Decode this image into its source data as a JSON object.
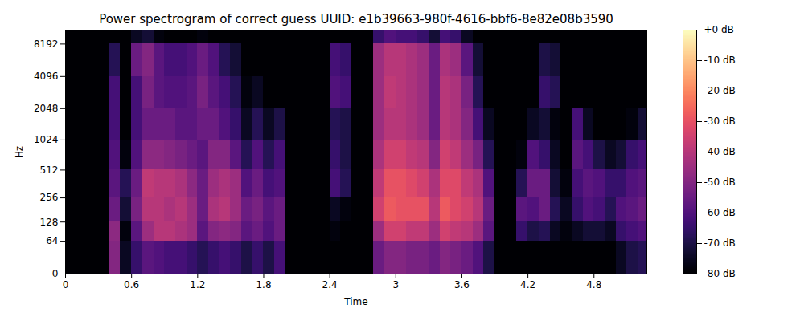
{
  "chart_data": {
    "type": "heatmap",
    "title": "Power spectrogram of correct guess UUID: e1b39663-980f-4616-bbf6-8e82e08b3590",
    "x_label": "Time",
    "y_label": "Hz",
    "log": "y",
    "xlim": [
      0,
      5.28
    ],
    "xticks": [
      0,
      0.6,
      1.2,
      1.8,
      2.4,
      3,
      3.6,
      4.2,
      4.8
    ],
    "ylim": [
      0,
      11025
    ],
    "yticks": [
      0,
      64,
      128,
      256,
      512,
      1024,
      2048,
      4096,
      8192
    ],
    "time_edges": [
      0,
      0.1,
      0.2,
      0.3,
      0.4,
      0.5,
      0.6,
      0.7,
      0.8,
      0.9,
      1,
      1.1,
      1.2,
      1.3,
      1.4,
      1.5,
      1.6,
      1.7,
      1.8,
      1.9,
      2,
      2.1,
      2.2,
      2.3,
      2.4,
      2.5,
      2.6,
      2.7,
      2.8,
      2.9,
      3,
      3.1,
      3.2,
      3.3,
      3.4,
      3.5,
      3.6,
      3.7,
      3.8,
      3.9,
      4,
      4.1,
      4.2,
      4.3,
      4.4,
      4.5,
      4.6,
      4.7,
      4.8,
      4.9,
      5,
      5.1,
      5.2,
      5.28
    ],
    "freq_edges": [
      0,
      64,
      128,
      256,
      512,
      1024,
      2048,
      4096,
      8192,
      11025
    ],
    "db_by_time": [
      [
        -80,
        -80,
        -80,
        -80,
        -80,
        -80,
        -80,
        -80,
        -80
      ],
      [
        -80,
        -80,
        -80,
        -80,
        -80,
        -80,
        -80,
        -80,
        -80
      ],
      [
        -80,
        -80,
        -80,
        -80,
        -80,
        -80,
        -80,
        -80,
        -80
      ],
      [
        -80,
        -80,
        -80,
        -80,
        -80,
        -80,
        -80,
        -80,
        -80
      ],
      [
        -50,
        -48,
        -55,
        -58,
        -60,
        -62,
        -62,
        -68,
        -80
      ],
      [
        -75,
        -78,
        -72,
        -68,
        -78,
        -80,
        -80,
        -80,
        -80
      ],
      [
        -65,
        -58,
        -52,
        -55,
        -60,
        -62,
        -62,
        -55,
        -75
      ],
      [
        -58,
        -45,
        -40,
        -38,
        -48,
        -55,
        -52,
        -50,
        -72
      ],
      [
        -60,
        -40,
        -40,
        -40,
        -48,
        -55,
        -58,
        -58,
        -78
      ],
      [
        -62,
        -40,
        -42,
        -40,
        -50,
        -55,
        -60,
        -62,
        -80
      ],
      [
        -62,
        -42,
        -40,
        -42,
        -52,
        -58,
        -60,
        -62,
        -80
      ],
      [
        -65,
        -45,
        -45,
        -48,
        -55,
        -58,
        -58,
        -60,
        -80
      ],
      [
        -68,
        -58,
        -55,
        -55,
        -58,
        -55,
        -52,
        -55,
        -78
      ],
      [
        -65,
        -50,
        -42,
        -45,
        -50,
        -55,
        -58,
        -60,
        -80
      ],
      [
        -62,
        -48,
        -40,
        -42,
        -50,
        -60,
        -62,
        -68,
        -80
      ],
      [
        -65,
        -50,
        -45,
        -45,
        -58,
        -65,
        -68,
        -72,
        -80
      ],
      [
        -70,
        -58,
        -55,
        -60,
        -68,
        -75,
        -78,
        -80,
        -80
      ],
      [
        -65,
        -55,
        -52,
        -55,
        -60,
        -68,
        -75,
        -80,
        -80
      ],
      [
        -70,
        -60,
        -58,
        -62,
        -68,
        -75,
        -80,
        -80,
        -80
      ],
      [
        -62,
        -55,
        -55,
        -60,
        -62,
        -70,
        -80,
        -80,
        -80
      ],
      [
        -80,
        -80,
        -80,
        -80,
        -80,
        -80,
        -80,
        -80,
        -80
      ],
      [
        -80,
        -80,
        -80,
        -80,
        -80,
        -80,
        -80,
        -80,
        -80
      ],
      [
        -80,
        -80,
        -80,
        -80,
        -80,
        -80,
        -80,
        -80,
        -80
      ],
      [
        -80,
        -80,
        -80,
        -80,
        -80,
        -80,
        -80,
        -80,
        -80
      ],
      [
        -80,
        -78,
        -75,
        -62,
        -65,
        -68,
        -60,
        -62,
        -80
      ],
      [
        -80,
        -80,
        -78,
        -68,
        -70,
        -70,
        -62,
        -65,
        -80
      ],
      [
        -80,
        -80,
        -80,
        -80,
        -80,
        -80,
        -80,
        -80,
        -80
      ],
      [
        -80,
        -80,
        -80,
        -80,
        -80,
        -80,
        -80,
        -80,
        -80
      ],
      [
        -55,
        -45,
        -35,
        -38,
        -42,
        -45,
        -45,
        -45,
        -65
      ],
      [
        -50,
        -35,
        -28,
        -30,
        -35,
        -40,
        -38,
        -40,
        -60
      ],
      [
        -50,
        -35,
        -30,
        -30,
        -35,
        -40,
        -40,
        -40,
        -62
      ],
      [
        -52,
        -38,
        -30,
        -32,
        -38,
        -42,
        -42,
        -42,
        -62
      ],
      [
        -52,
        -38,
        -30,
        -35,
        -40,
        -45,
        -45,
        -45,
        -65
      ],
      [
        -55,
        -45,
        -40,
        -42,
        -50,
        -55,
        -55,
        -55,
        -72
      ],
      [
        -50,
        -35,
        -28,
        -32,
        -35,
        -40,
        -40,
        -42,
        -62
      ],
      [
        -52,
        -38,
        -32,
        -32,
        -38,
        -42,
        -42,
        -45,
        -65
      ],
      [
        -55,
        -40,
        -35,
        -38,
        -45,
        -50,
        -52,
        -58,
        -75
      ],
      [
        -60,
        -45,
        -40,
        -42,
        -52,
        -62,
        -68,
        -72,
        -80
      ],
      [
        -70,
        -58,
        -55,
        -60,
        -68,
        -75,
        -80,
        -80,
        -80
      ],
      [
        -80,
        -80,
        -80,
        -80,
        -80,
        -80,
        -80,
        -80,
        -80
      ],
      [
        -80,
        -80,
        -80,
        -80,
        -80,
        -80,
        -80,
        -80,
        -80
      ],
      [
        -80,
        -65,
        -58,
        -68,
        -78,
        -80,
        -80,
        -80,
        -80
      ],
      [
        -80,
        -70,
        -60,
        -55,
        -60,
        -75,
        -80,
        -80,
        -80
      ],
      [
        -80,
        -68,
        -55,
        -55,
        -65,
        -72,
        -65,
        -70,
        -80
      ],
      [
        -80,
        -75,
        -68,
        -72,
        -75,
        -78,
        -68,
        -72,
        -80
      ],
      [
        -80,
        -78,
        -75,
        -78,
        -80,
        -80,
        -80,
        -80,
        -80
      ],
      [
        -80,
        -75,
        -65,
        -62,
        -58,
        -62,
        -80,
        -80,
        -80
      ],
      [
        -80,
        -72,
        -60,
        -58,
        -62,
        -75,
        -80,
        -80,
        -80
      ],
      [
        -80,
        -72,
        -62,
        -60,
        -70,
        -80,
        -80,
        -80,
        -80
      ],
      [
        -80,
        -75,
        -68,
        -65,
        -75,
        -80,
        -80,
        -80,
        -80
      ],
      [
        -75,
        -65,
        -60,
        -65,
        -72,
        -80,
        -80,
        -80,
        -80
      ],
      [
        -70,
        -62,
        -58,
        -60,
        -65,
        -78,
        -80,
        -80,
        -80
      ],
      [
        -68,
        -60,
        -55,
        -58,
        -62,
        -72,
        -80,
        -80,
        -80
      ]
    ],
    "colorbar_range": [
      -80,
      0
    ],
    "colorbar_ticks": [
      {
        "value": 0,
        "label": "+0 dB"
      },
      {
        "value": -10,
        "label": "-10 dB"
      },
      {
        "value": -20,
        "label": "-20 dB"
      },
      {
        "value": -30,
        "label": "-30 dB"
      },
      {
        "value": -40,
        "label": "-40 dB"
      },
      {
        "value": -50,
        "label": "-50 dB"
      },
      {
        "value": -60,
        "label": "-60 dB"
      },
      {
        "value": -70,
        "label": "-70 dB"
      },
      {
        "value": -80,
        "label": "-80 dB"
      }
    ]
  }
}
